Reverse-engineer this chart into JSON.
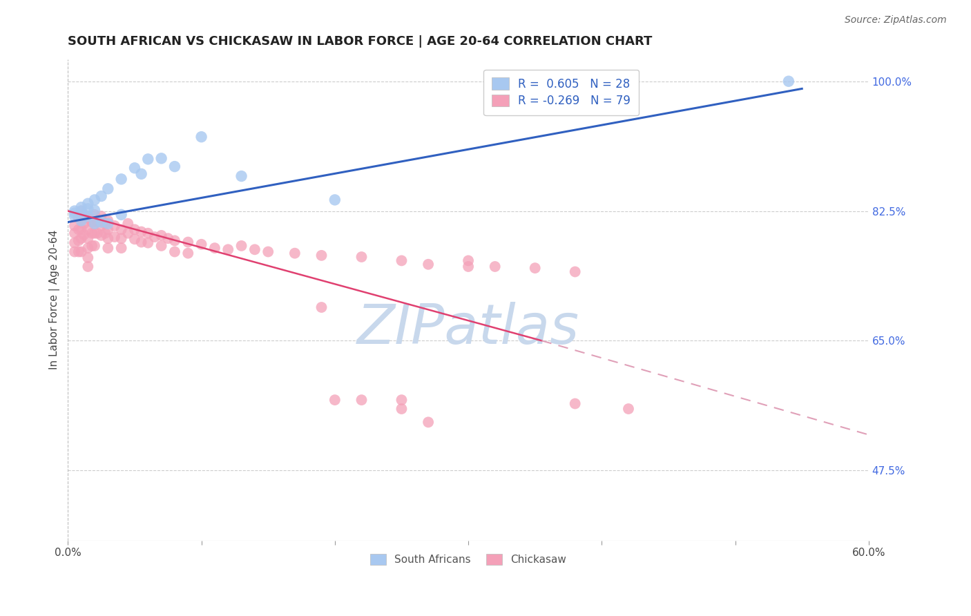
{
  "title": "SOUTH AFRICAN VS CHICKASAW IN LABOR FORCE | AGE 20-64 CORRELATION CHART",
  "source": "Source: ZipAtlas.com",
  "ylabel": "In Labor Force | Age 20-64",
  "xlim": [
    0.0,
    0.6
  ],
  "ylim": [
    0.38,
    1.03
  ],
  "xticks": [
    0.0,
    0.1,
    0.2,
    0.3,
    0.4,
    0.5,
    0.6
  ],
  "xticklabels": [
    "0.0%",
    "",
    "",
    "",
    "",
    "",
    "60.0%"
  ],
  "yticks_right": [
    1.0,
    0.825,
    0.65,
    0.475
  ],
  "ytick_labels_right": [
    "100.0%",
    "82.5%",
    "65.0%",
    "47.5%"
  ],
  "legend_blue_label": "R =  0.605   N = 28",
  "legend_pink_label": "R = -0.269   N = 79",
  "legend_bottom_labels": [
    "South Africans",
    "Chickasaw"
  ],
  "blue_color": "#A8C8F0",
  "pink_color": "#F4A0B8",
  "line_blue_color": "#3060C0",
  "line_pink_color": "#E04070",
  "line_pink_dash_color": "#E0A0B8",
  "watermark_color": "#C8D8EC",
  "r_value_color": "#3060C0",
  "blue_scatter_x": [
    0.005,
    0.005,
    0.005,
    0.01,
    0.01,
    0.01,
    0.015,
    0.015,
    0.015,
    0.02,
    0.02,
    0.02,
    0.025,
    0.025,
    0.03,
    0.03,
    0.04,
    0.04,
    0.05,
    0.055,
    0.06,
    0.07,
    0.08,
    0.1,
    0.13,
    0.2,
    0.54
  ],
  "blue_scatter_y": [
    0.825,
    0.822,
    0.818,
    0.83,
    0.825,
    0.812,
    0.835,
    0.828,
    0.818,
    0.84,
    0.826,
    0.808,
    0.845,
    0.81,
    0.855,
    0.808,
    0.868,
    0.82,
    0.883,
    0.875,
    0.895,
    0.896,
    0.885,
    0.925,
    0.872,
    0.84,
    1.0
  ],
  "pink_scatter_x": [
    0.005,
    0.005,
    0.005,
    0.005,
    0.008,
    0.008,
    0.008,
    0.008,
    0.01,
    0.01,
    0.01,
    0.01,
    0.01,
    0.012,
    0.012,
    0.012,
    0.015,
    0.015,
    0.015,
    0.015,
    0.015,
    0.015,
    0.018,
    0.018,
    0.018,
    0.02,
    0.02,
    0.02,
    0.02,
    0.022,
    0.022,
    0.025,
    0.025,
    0.025,
    0.028,
    0.028,
    0.03,
    0.03,
    0.03,
    0.03,
    0.035,
    0.035,
    0.04,
    0.04,
    0.04,
    0.045,
    0.045,
    0.05,
    0.05,
    0.055,
    0.055,
    0.06,
    0.06,
    0.065,
    0.07,
    0.07,
    0.075,
    0.08,
    0.08,
    0.09,
    0.09,
    0.1,
    0.11,
    0.12,
    0.13,
    0.14,
    0.15,
    0.17,
    0.19,
    0.22,
    0.25,
    0.27,
    0.3,
    0.3,
    0.32,
    0.35,
    0.38,
    0.38,
    0.42
  ],
  "pink_scatter_y": [
    0.805,
    0.795,
    0.782,
    0.77,
    0.815,
    0.8,
    0.785,
    0.77,
    0.825,
    0.812,
    0.8,
    0.788,
    0.77,
    0.82,
    0.808,
    0.793,
    0.815,
    0.8,
    0.788,
    0.775,
    0.762,
    0.75,
    0.81,
    0.795,
    0.778,
    0.82,
    0.808,
    0.795,
    0.778,
    0.81,
    0.795,
    0.818,
    0.805,
    0.792,
    0.808,
    0.795,
    0.812,
    0.8,
    0.788,
    0.775,
    0.805,
    0.79,
    0.8,
    0.788,
    0.775,
    0.808,
    0.795,
    0.8,
    0.787,
    0.797,
    0.783,
    0.795,
    0.782,
    0.79,
    0.792,
    0.778,
    0.788,
    0.785,
    0.77,
    0.783,
    0.768,
    0.78,
    0.775,
    0.773,
    0.778,
    0.773,
    0.77,
    0.768,
    0.765,
    0.763,
    0.758,
    0.753,
    0.758,
    0.75,
    0.75,
    0.748,
    0.743,
    0.565,
    0.558
  ],
  "pink_extra_x": [
    0.19,
    0.2,
    0.22,
    0.25,
    0.25,
    0.27
  ],
  "pink_extra_y": [
    0.695,
    0.57,
    0.57,
    0.57,
    0.558,
    0.54
  ],
  "blue_line_x": [
    0.0,
    0.55
  ],
  "blue_line_y": [
    0.81,
    0.99
  ],
  "pink_solid_line_x": [
    0.0,
    0.355
  ],
  "pink_solid_line_y": [
    0.825,
    0.65
  ],
  "pink_dash_line_x": [
    0.355,
    0.6
  ],
  "pink_dash_line_y": [
    0.65,
    0.523
  ]
}
